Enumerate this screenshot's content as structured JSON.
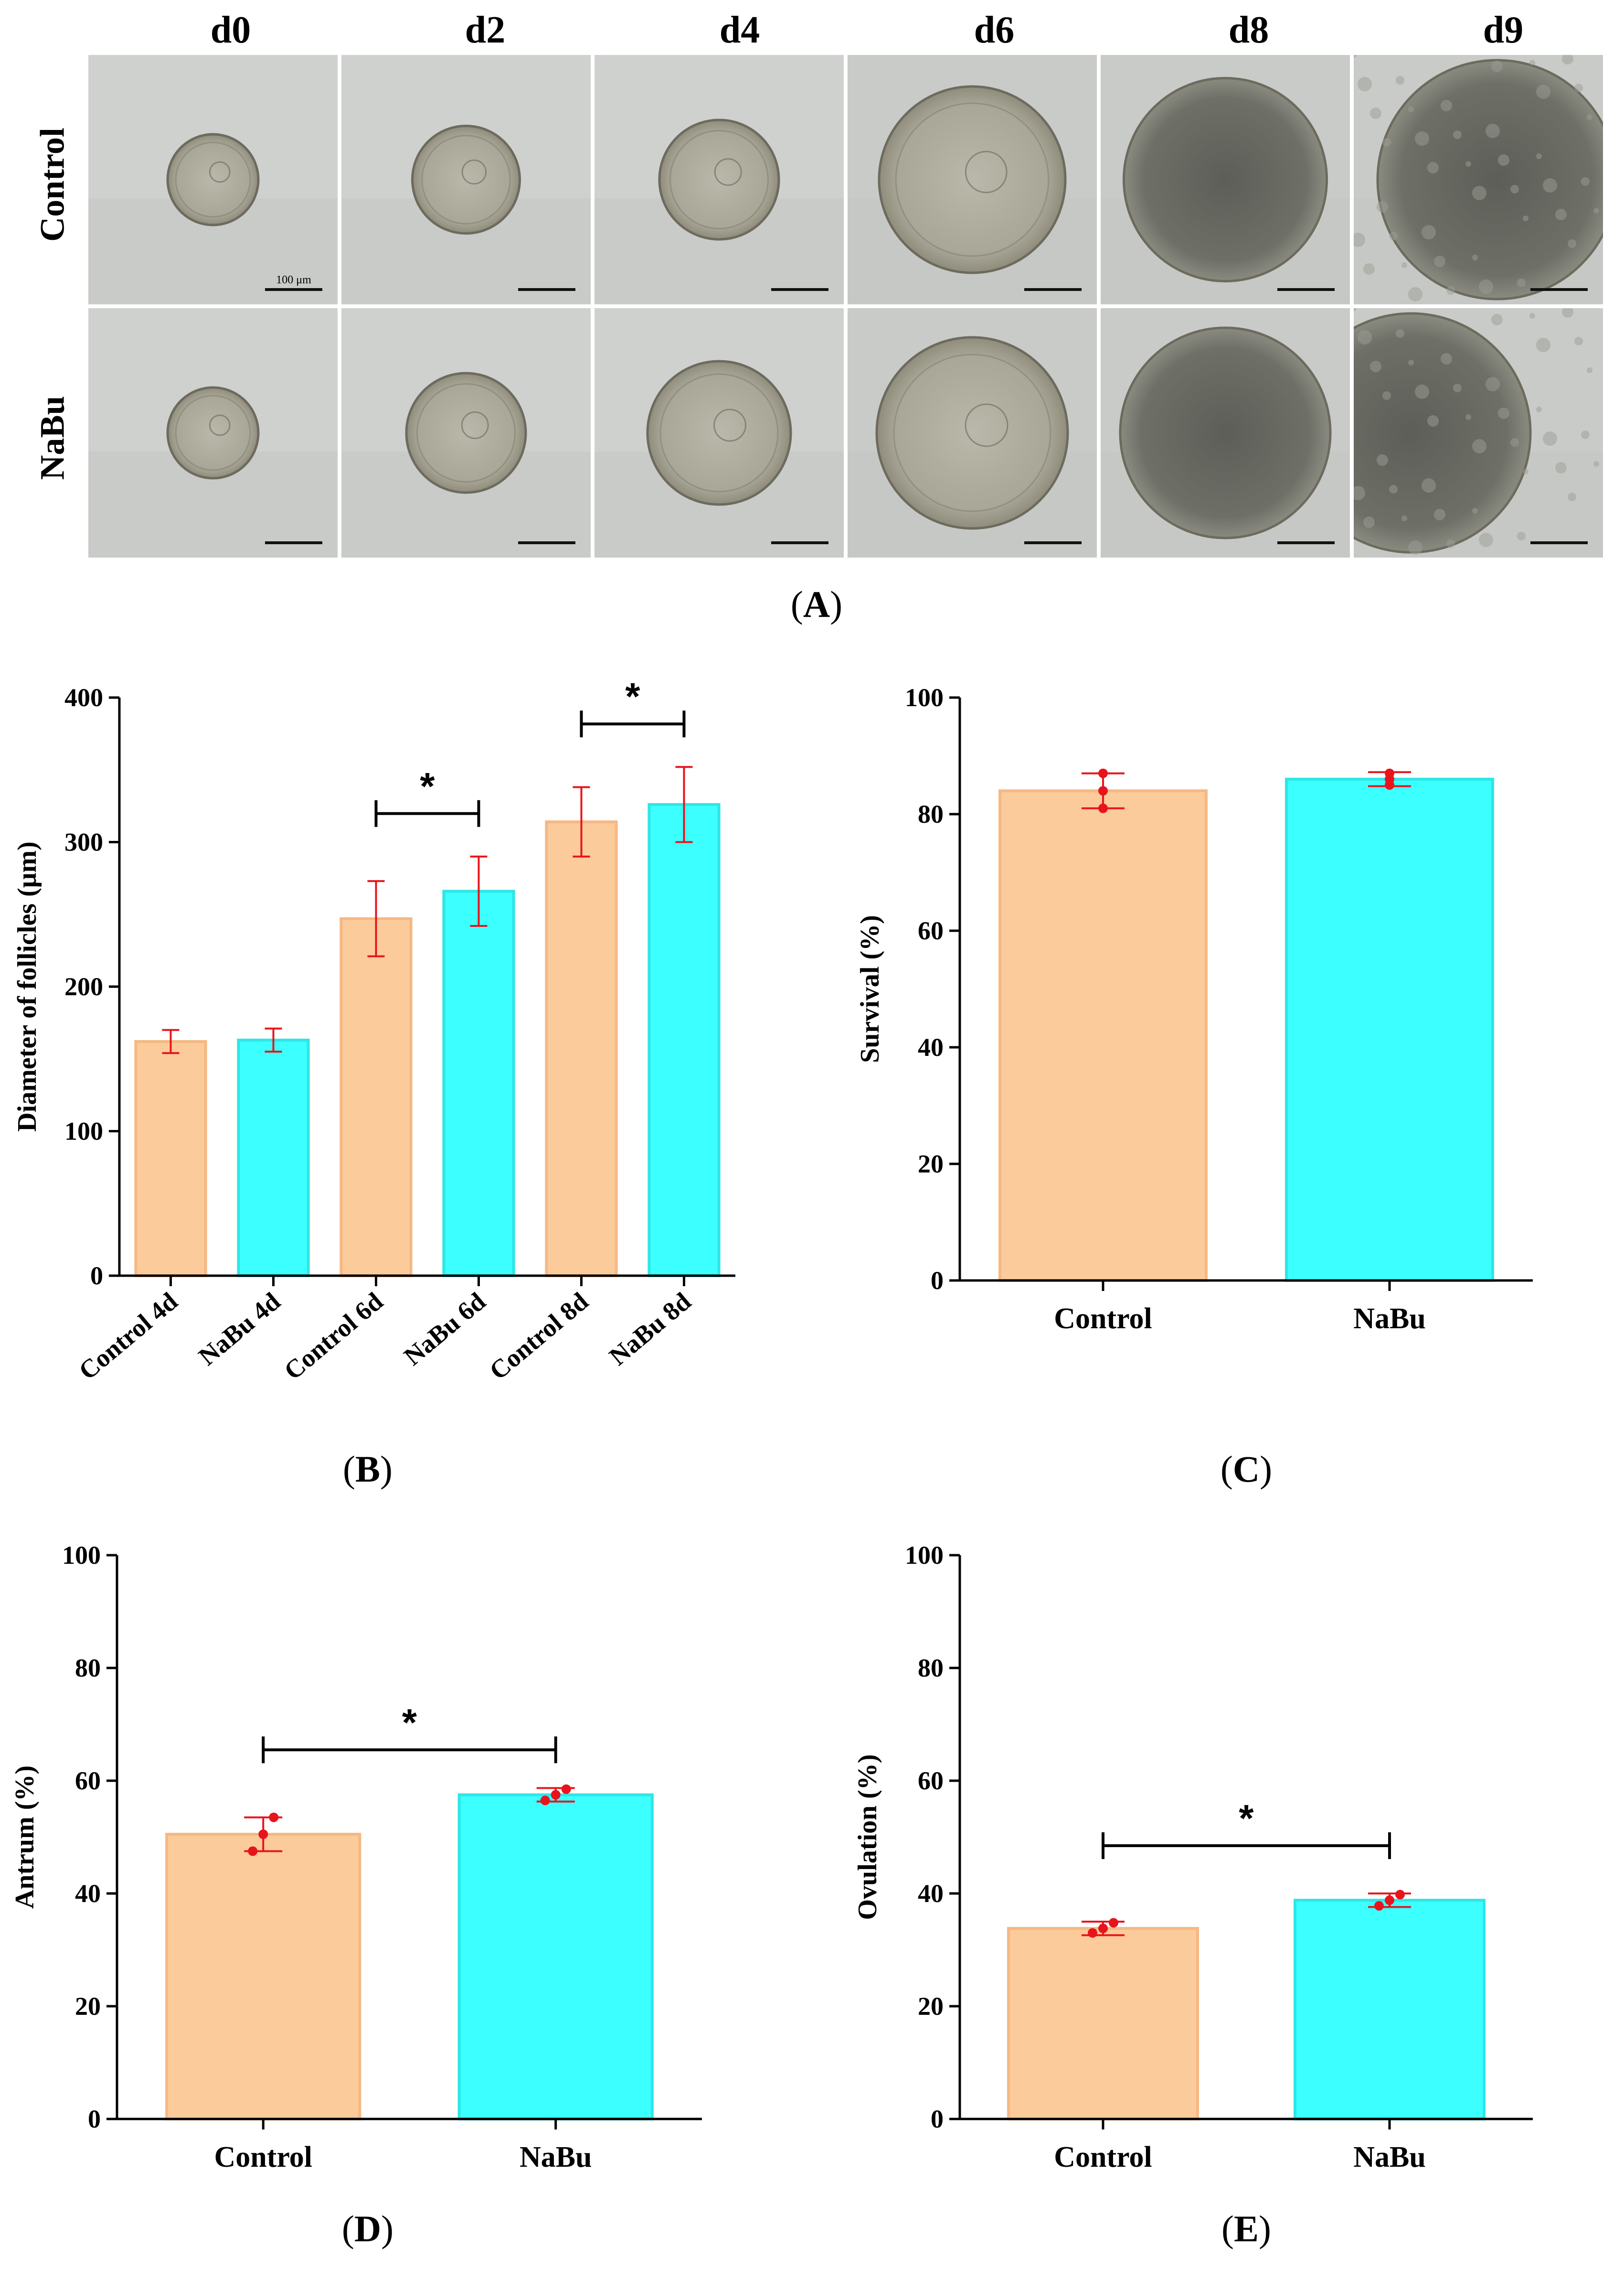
{
  "panelA": {
    "label": "A",
    "columns": [
      "d0",
      "d2",
      "d4",
      "d6",
      "d8",
      "d9"
    ],
    "rows": [
      "Control",
      "NaBu"
    ],
    "scale_bar_text": "100 μm",
    "follicle_size": {
      "Control": [
        0.38,
        0.45,
        0.5,
        0.78,
        0.85,
        1.0
      ],
      "NaBu": [
        0.38,
        0.5,
        0.6,
        0.8,
        0.88,
        1.0
      ]
    }
  },
  "colors": {
    "control": "#FCCB9B",
    "control_edge": "#F5B883",
    "nabu": "#3CFFFF",
    "nabu_edge": "#2EE6E6",
    "error": "#E8141B",
    "background": "#FFFFFF"
  },
  "chart_data": [
    {
      "id": "B",
      "label": "B",
      "type": "bar",
      "categories": [
        "Control 4d",
        "NaBu 4d",
        "Control 6d",
        "NaBu 6d",
        "Control 8d",
        "NaBu 8d"
      ],
      "groups": [
        "control",
        "nabu",
        "control",
        "nabu",
        "control",
        "nabu"
      ],
      "values": [
        162,
        163,
        247,
        266,
        314,
        326
      ],
      "errors": [
        8,
        8,
        26,
        24,
        24,
        26
      ],
      "ylabel": "Diameter of follicles (μm)",
      "ylim": [
        0,
        400
      ],
      "yticks": [
        0,
        100,
        200,
        300,
        400
      ],
      "significance": [
        {
          "from": 2,
          "to": 3,
          "label": "*"
        },
        {
          "from": 4,
          "to": 5,
          "label": "*"
        }
      ]
    },
    {
      "id": "C",
      "label": "C",
      "type": "bar",
      "categories": [
        "Control",
        "NaBu"
      ],
      "groups": [
        "control",
        "nabu"
      ],
      "values": [
        84,
        86
      ],
      "errors": [
        3,
        1.2
      ],
      "points": [
        [
          81,
          84,
          87
        ],
        [
          85,
          86,
          87
        ]
      ],
      "ylabel": "Survival (%)",
      "ylim": [
        0,
        100
      ],
      "yticks": [
        0,
        20,
        40,
        60,
        80,
        100
      ],
      "significance": []
    },
    {
      "id": "D",
      "label": "D",
      "type": "bar",
      "categories": [
        "Control",
        "NaBu"
      ],
      "groups": [
        "control",
        "nabu"
      ],
      "values": [
        50.5,
        57.5
      ],
      "errors": [
        3,
        1.2
      ],
      "points": [
        [
          47.5,
          50.5,
          53.5
        ],
        [
          56.5,
          57.5,
          58.5
        ]
      ],
      "ylabel": "Antrum (%)",
      "ylim": [
        0,
        100
      ],
      "yticks": [
        0,
        20,
        40,
        60,
        80,
        100
      ],
      "significance": [
        {
          "from": 0,
          "to": 1,
          "label": "*"
        }
      ]
    },
    {
      "id": "E",
      "label": "E",
      "type": "bar",
      "categories": [
        "Control",
        "NaBu"
      ],
      "groups": [
        "control",
        "nabu"
      ],
      "values": [
        33.8,
        38.8
      ],
      "errors": [
        1.2,
        1.2
      ],
      "points": [
        [
          33,
          33.8,
          34.8
        ],
        [
          37.8,
          38.8,
          39.8
        ]
      ],
      "ylabel": "Ovulation (%)",
      "ylim": [
        0,
        100
      ],
      "yticks": [
        0,
        20,
        40,
        60,
        80,
        100
      ],
      "significance": [
        {
          "from": 0,
          "to": 1,
          "label": "*"
        }
      ]
    }
  ]
}
